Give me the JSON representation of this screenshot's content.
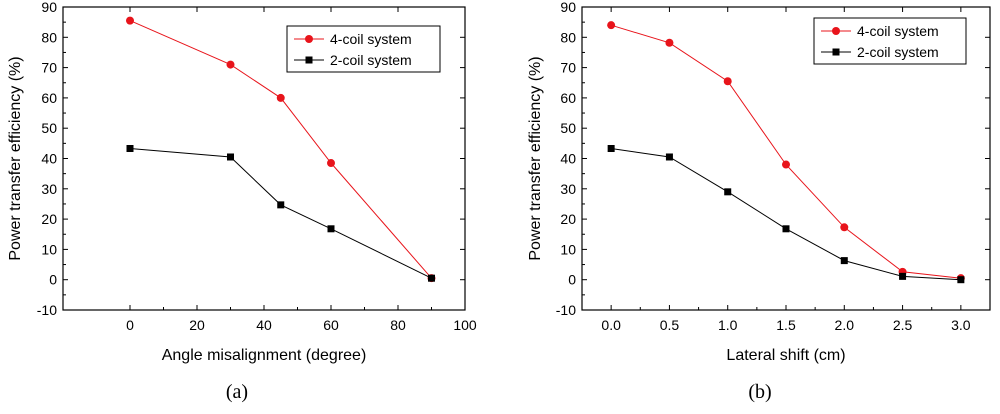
{
  "chart_data": [
    {
      "type": "line",
      "panel_label": "(a)",
      "xlabel": "Angle misalignment (degree)",
      "ylabel": "Power transfer efficiency (%)",
      "xlim": [
        -20,
        100
      ],
      "ylim": [
        -10,
        90
      ],
      "xticks": [
        "0",
        "20",
        "40",
        "60",
        "80",
        "100"
      ],
      "yticks": [
        "-10",
        "0",
        "10",
        "20",
        "30",
        "40",
        "50",
        "60",
        "70",
        "80",
        "90"
      ],
      "grid": false,
      "legend_position": "top-right",
      "series": [
        {
          "name": "4-coil system",
          "color": "#e8141b",
          "marker": "circle",
          "x": [
            0,
            30,
            45,
            60,
            90
          ],
          "values": [
            85.5,
            71,
            60,
            38.5,
            0.5
          ]
        },
        {
          "name": "2-coil system",
          "color": "#000000",
          "marker": "square",
          "x": [
            0,
            30,
            45,
            60,
            90
          ],
          "values": [
            43.3,
            40.5,
            24.7,
            16.8,
            0.5
          ]
        }
      ]
    },
    {
      "type": "line",
      "panel_label": "(b)",
      "xlabel": "Lateral shift (cm)",
      "ylabel": "Power transfer efficiency (%)",
      "xlim": [
        -0.25,
        3.25
      ],
      "ylim": [
        -10,
        90
      ],
      "xticks": [
        "0.0",
        "0.5",
        "1.0",
        "1.5",
        "2.0",
        "2.5",
        "3.0"
      ],
      "yticks": [
        "-10",
        "0",
        "10",
        "20",
        "30",
        "40",
        "50",
        "60",
        "70",
        "80",
        "90"
      ],
      "grid": false,
      "legend_position": "top-right",
      "series": [
        {
          "name": "4-coil system",
          "color": "#e8141b",
          "marker": "circle",
          "x": [
            0,
            0.5,
            1.0,
            1.5,
            2.0,
            2.5,
            3.0
          ],
          "values": [
            84,
            78.2,
            65.5,
            38,
            17.3,
            2.6,
            0.5
          ]
        },
        {
          "name": "2-coil system",
          "color": "#000000",
          "marker": "square",
          "x": [
            0,
            0.5,
            1.0,
            1.5,
            2.0,
            2.5,
            3.0
          ],
          "values": [
            43.3,
            40.5,
            29,
            16.8,
            6.3,
            1.1,
            0
          ]
        }
      ]
    }
  ]
}
